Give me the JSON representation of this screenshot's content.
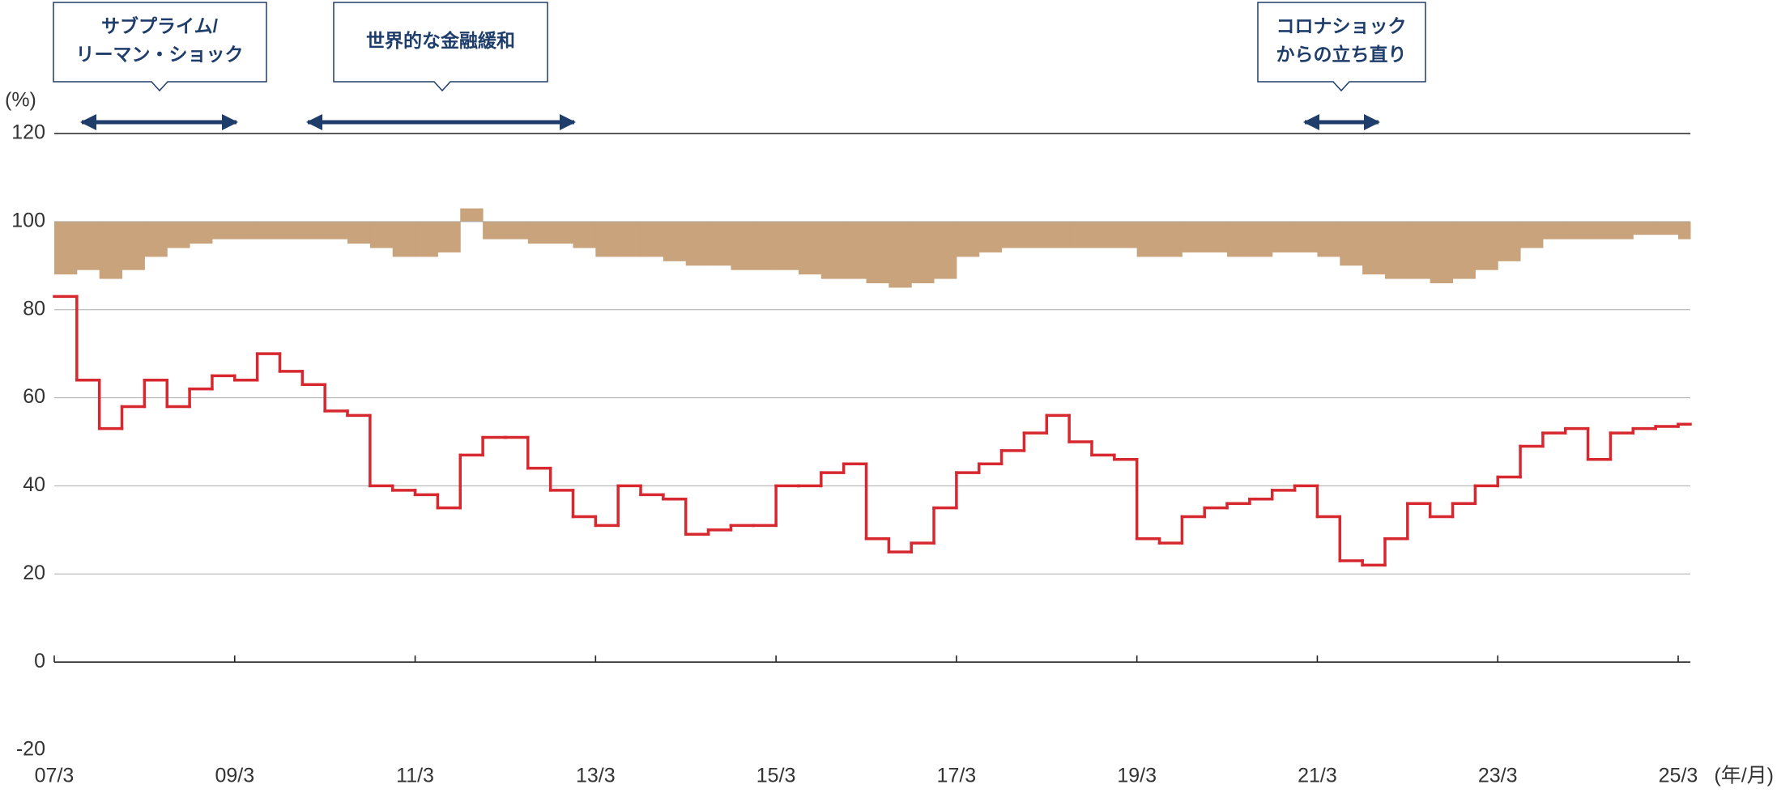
{
  "chart_data": {
    "type": "combo",
    "y_unit": "(%)",
    "x_unit": "(年/月)",
    "categories": [
      "07/3",
      null,
      null,
      null,
      null,
      null,
      null,
      null,
      "09/3",
      null,
      null,
      null,
      null,
      null,
      null,
      null,
      "11/3",
      null,
      null,
      null,
      null,
      null,
      null,
      null,
      "13/3",
      null,
      null,
      null,
      null,
      null,
      null,
      null,
      "15/3",
      null,
      null,
      null,
      null,
      null,
      null,
      null,
      "17/3",
      null,
      null,
      null,
      null,
      null,
      null,
      null,
      "19/3",
      null,
      null,
      null,
      null,
      null,
      null,
      null,
      "21/3",
      null,
      null,
      null,
      null,
      null,
      null,
      null,
      "23/3",
      null,
      null,
      null,
      null,
      null,
      null,
      null,
      "25/3"
    ],
    "ylim": [
      -20,
      120
    ],
    "yticks": [
      -20,
      0,
      20,
      40,
      60,
      80,
      100,
      120
    ],
    "grid": true,
    "series": [
      {
        "type": "bar",
        "bar_base": 100,
        "color": "#c9a37c",
        "values": [
          88,
          89,
          87,
          89,
          92,
          94,
          95,
          96,
          96,
          96,
          96,
          96,
          96,
          95,
          94,
          92,
          92,
          93,
          103,
          96,
          96,
          95,
          95,
          94,
          92,
          92,
          92,
          91,
          90,
          90,
          89,
          89,
          89,
          88,
          87,
          87,
          86,
          85,
          86,
          87,
          92,
          93,
          94,
          94,
          94,
          94,
          94,
          94,
          92,
          92,
          93,
          93,
          92,
          92,
          93,
          93,
          92,
          90,
          88,
          87,
          87,
          86,
          87,
          89,
          91,
          94,
          96,
          96,
          96,
          96,
          97,
          97,
          96
        ]
      },
      {
        "type": "step",
        "color": "#d7282f",
        "values": [
          83,
          64,
          53,
          58,
          64,
          58,
          62,
          65,
          64,
          70,
          66,
          63,
          57,
          56,
          40,
          39,
          38,
          35,
          47,
          51,
          51,
          44,
          39,
          33,
          31,
          40,
          38,
          37,
          29,
          30,
          31,
          31,
          40,
          40,
          43,
          45,
          28,
          25,
          27,
          35,
          43,
          45,
          48,
          52,
          56,
          50,
          47,
          46,
          28,
          27,
          33,
          35,
          36,
          37,
          39,
          40,
          33,
          23,
          22,
          28,
          36,
          33,
          36,
          40,
          42,
          49,
          52,
          53,
          46,
          52,
          53,
          53.5,
          54
        ]
      }
    ],
    "annotations": [
      {
        "lines": [
          "サブプライム/",
          "リーマン・ショック"
        ]
      },
      {
        "lines": [
          "世界的な金融緩和"
        ]
      },
      {
        "lines": [
          "コロナショック",
          "からの立ち直り"
        ]
      }
    ]
  }
}
